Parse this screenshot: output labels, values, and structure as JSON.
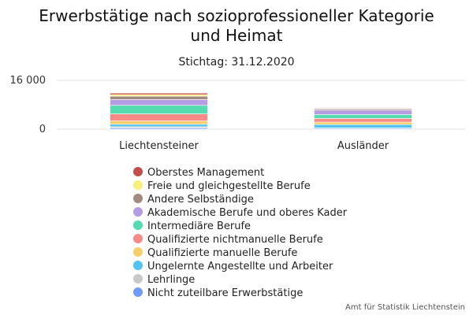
{
  "chart_data": {
    "type": "bar",
    "stacked": true,
    "title_line1": "Erwerbstätige nach sozioprofessioneller Kategorie",
    "title_line2": "und Heimat",
    "subtitle": "Stichtag: 31.12.2020",
    "categories": [
      "Liechtensteiner",
      "Ausländer"
    ],
    "ylim": [
      0,
      16000
    ],
    "yticks": [
      {
        "value": 0,
        "label": "0"
      },
      {
        "value": 16000,
        "label": "16 000"
      }
    ],
    "grid": true,
    "legend_position": "bottom",
    "series": [
      {
        "name": "Nicht zuteilbare Erwerbstätige",
        "color": "#6f9cf7",
        "values": [
          400,
          300
        ]
      },
      {
        "name": "Lehrlinge",
        "color": "#c8c8c8",
        "values": [
          400,
          100
        ]
      },
      {
        "name": "Ungelernte Angestellte und Arbeiter",
        "color": "#52c4ef",
        "values": [
          800,
          1100
        ]
      },
      {
        "name": "Qualifizierte manuelle Berufe",
        "color": "#f7ce6b",
        "values": [
          1100,
          800
        ]
      },
      {
        "name": "Qualifizierte nichtmanuelle Berufe",
        "color": "#f88a87",
        "values": [
          2300,
          1200
        ]
      },
      {
        "name": "Intermediäre Berufe",
        "color": "#55dbb0",
        "values": [
          2800,
          1300
        ]
      },
      {
        "name": "Akademische Berufe und oberes Kader",
        "color": "#b59de3",
        "values": [
          1900,
          1400
        ]
      },
      {
        "name": "Andere Selbständige",
        "color": "#a08b7e",
        "values": [
          1100,
          400
        ]
      },
      {
        "name": "Freie und gleichgestellte Berufe",
        "color": "#f7ef7c",
        "values": [
          500,
          100
        ]
      },
      {
        "name": "Oberstes Management",
        "color": "#c44d4d",
        "values": [
          500,
          200
        ]
      }
    ],
    "source": "Amt für Statistik Liechtenstein"
  }
}
